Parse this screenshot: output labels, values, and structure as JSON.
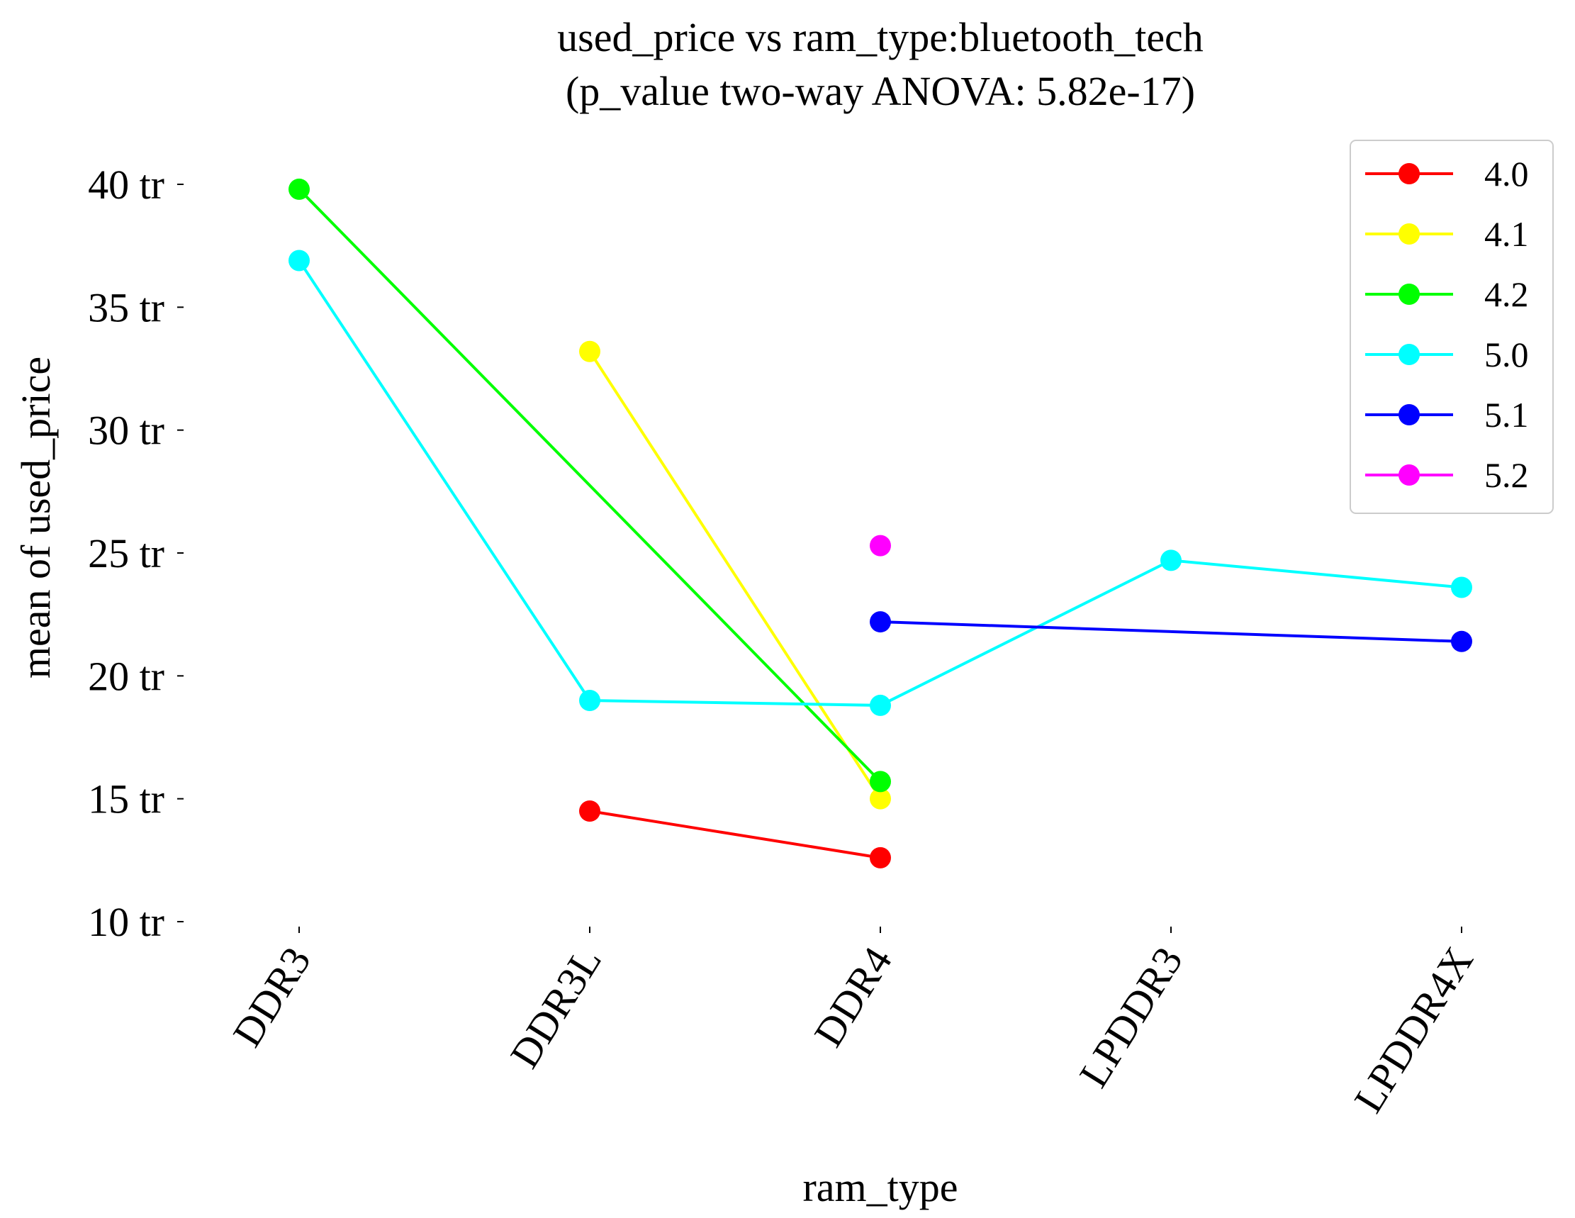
{
  "chart_data": {
    "type": "line",
    "title": "used_price vs ram_type:bluetooth_tech",
    "subtitle": "(p_value two-way ANOVA: 5.82e-17)",
    "xlabel": "ram_type",
    "ylabel": "mean of used_price",
    "categories": [
      "DDR3",
      "DDR3L",
      "DDR4",
      "LPDDR3",
      "LPDDR4X"
    ],
    "ylim": [
      10,
      40
    ],
    "yticks": [
      10,
      15,
      20,
      25,
      30,
      35,
      40
    ],
    "ytick_labels": [
      "10 tr",
      "15 tr",
      "20 tr",
      "25 tr",
      "30 tr",
      "35 tr",
      "40 tr"
    ],
    "grid": false,
    "legend_position": "top-right",
    "series": [
      {
        "name": "4.0",
        "color": "#ff0000",
        "values": [
          null,
          14.5,
          12.6,
          null,
          null
        ]
      },
      {
        "name": "4.1",
        "color": "#ffff00",
        "values": [
          null,
          33.2,
          15.0,
          null,
          null
        ]
      },
      {
        "name": "4.2",
        "color": "#00ff00",
        "values": [
          39.8,
          null,
          15.7,
          null,
          null
        ]
      },
      {
        "name": "5.0",
        "color": "#00ffff",
        "values": [
          36.9,
          19.0,
          18.8,
          24.7,
          23.6
        ]
      },
      {
        "name": "5.1",
        "color": "#0000ff",
        "values": [
          null,
          null,
          22.2,
          null,
          21.4
        ]
      },
      {
        "name": "5.2",
        "color": "#ff00ff",
        "values": [
          null,
          null,
          25.3,
          null,
          null
        ]
      }
    ]
  }
}
